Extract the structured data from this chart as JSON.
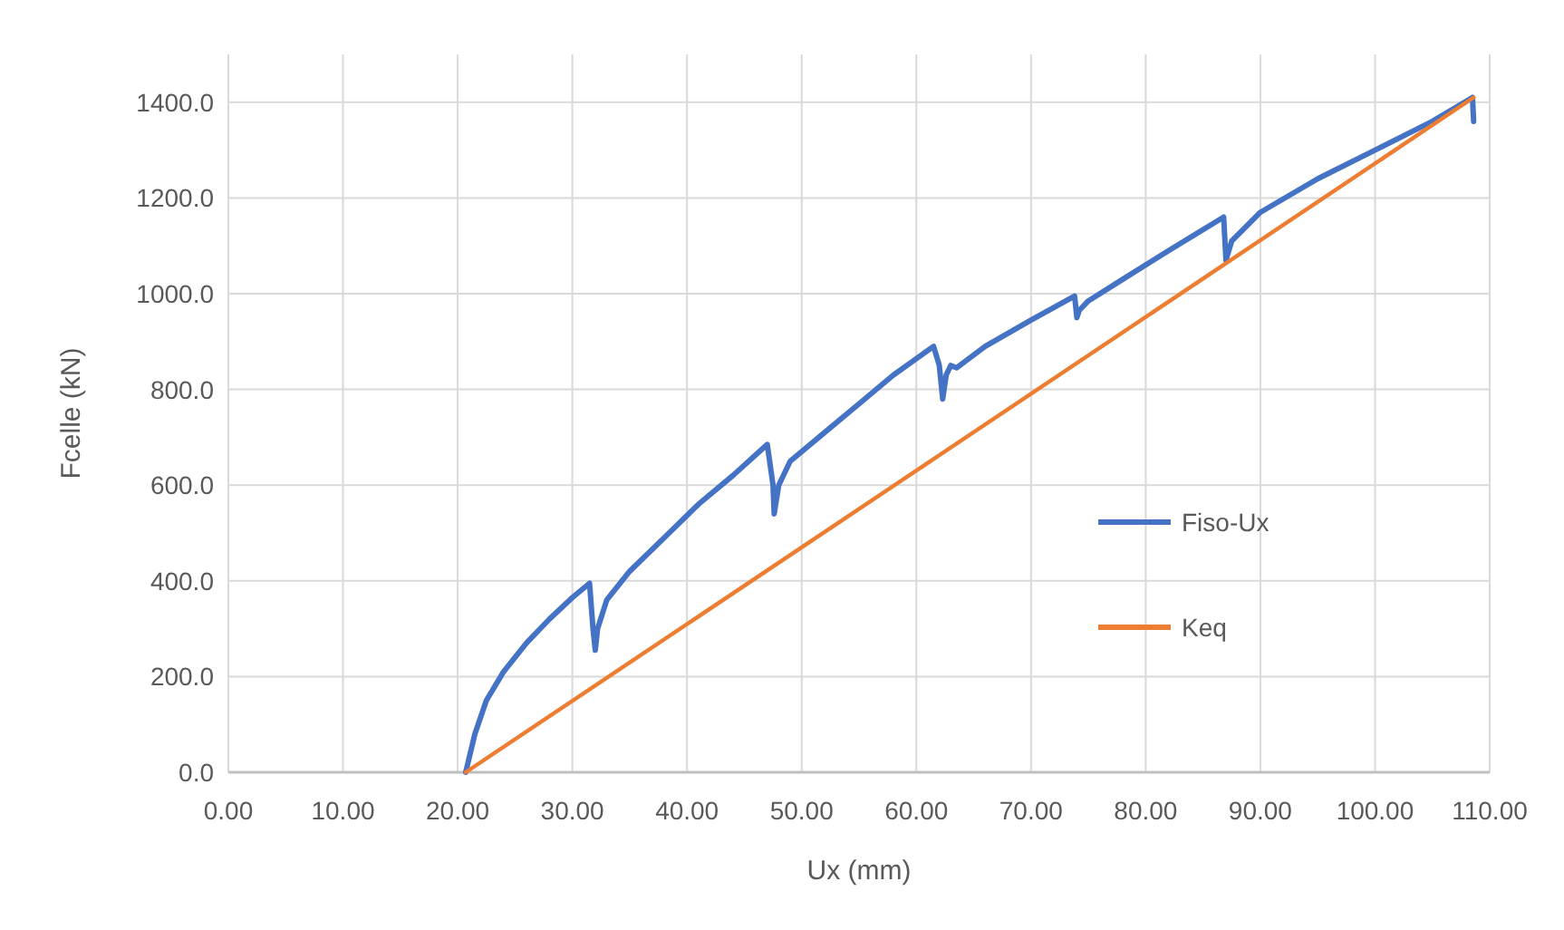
{
  "chart_data": {
    "type": "line",
    "xlabel": "Ux (mm)",
    "ylabel": "Fcelle (kN)",
    "xlim": [
      0,
      110
    ],
    "ylim": [
      0,
      1500
    ],
    "xticks": [
      {
        "value": 0,
        "label": "0.00"
      },
      {
        "value": 10,
        "label": "10.00"
      },
      {
        "value": 20,
        "label": "20.00"
      },
      {
        "value": 30,
        "label": "30.00"
      },
      {
        "value": 40,
        "label": "40.00"
      },
      {
        "value": 50,
        "label": "50.00"
      },
      {
        "value": 60,
        "label": "60.00"
      },
      {
        "value": 70,
        "label": "70.00"
      },
      {
        "value": 80,
        "label": "80.00"
      },
      {
        "value": 90,
        "label": "90.00"
      },
      {
        "value": 100,
        "label": "100.00"
      },
      {
        "value": 110,
        "label": "110.00"
      }
    ],
    "yticks": [
      {
        "value": 0,
        "label": "0.0"
      },
      {
        "value": 200,
        "label": "200.0"
      },
      {
        "value": 400,
        "label": "400.0"
      },
      {
        "value": 600,
        "label": "600.0"
      },
      {
        "value": 800,
        "label": "800.0"
      },
      {
        "value": 1000,
        "label": "1000.0"
      },
      {
        "value": 1200,
        "label": "1200.0"
      },
      {
        "value": 1400,
        "label": "1400.0"
      }
    ],
    "grid": true,
    "legend": "right",
    "line_style": "solid",
    "series": [
      {
        "name": "Fiso-Ux",
        "color": "#4472c4",
        "x": [
          20.7,
          21.5,
          22.5,
          24,
          26,
          28,
          30,
          31.5,
          31.8,
          32,
          32.2,
          33,
          35,
          38,
          41,
          44,
          47,
          47.5,
          47.6,
          48,
          49,
          52,
          55,
          58,
          61.5,
          62,
          62.3,
          62.6,
          63,
          63.5,
          66,
          70,
          73.8,
          74,
          74.2,
          75,
          78,
          82,
          86.8,
          87,
          87.5,
          90,
          95,
          100,
          105,
          108.5,
          108.6
        ],
        "values": [
          0,
          80,
          150,
          210,
          270,
          320,
          365,
          395,
          300,
          255,
          300,
          360,
          420,
          490,
          560,
          620,
          685,
          600,
          540,
          600,
          650,
          710,
          770,
          830,
          890,
          850,
          780,
          830,
          850,
          845,
          890,
          945,
          995,
          950,
          965,
          985,
          1030,
          1090,
          1160,
          1070,
          1110,
          1170,
          1240,
          1300,
          1360,
          1410,
          1360
        ]
      },
      {
        "name": "Keq",
        "color": "#ed7d31",
        "x": [
          20.7,
          108.6
        ],
        "values": [
          0,
          1410
        ]
      }
    ]
  }
}
